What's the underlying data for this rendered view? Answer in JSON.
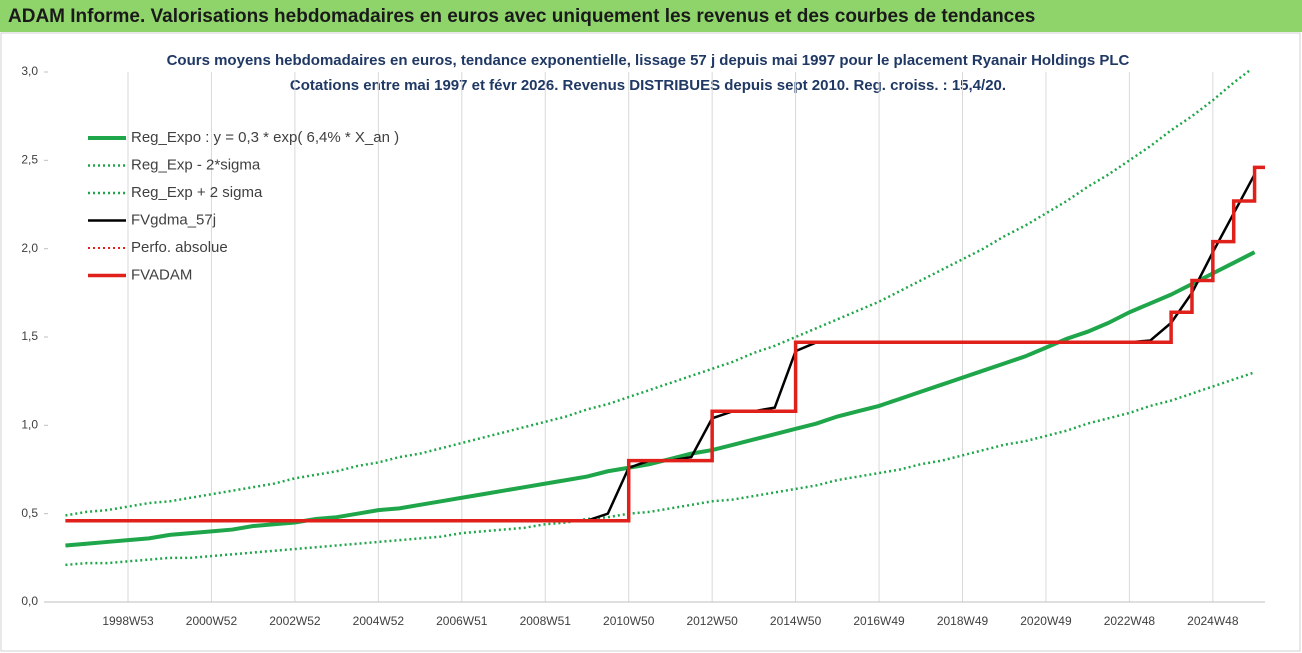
{
  "header": {
    "title": "ADAM Informe. Valorisations hebdomadaires en euros avec uniquement les revenus et des courbes de tendances"
  },
  "chart_data": {
    "type": "line",
    "title": "Cours moyens hebdomadaires en euros, tendance exponentielle, lissage 57 j depuis mai 1997 pour le placement Ryanair Holdings PLC",
    "subtitle": "Cotations entre mai 1997 et févr 2026. Revenus DISTRIBUES depuis sept 2010. Reg. croiss. : 15,4/20.",
    "categories": [
      null,
      null,
      null,
      "1998W53",
      null,
      null,
      null,
      "2000W52",
      null,
      null,
      null,
      "2002W52",
      null,
      null,
      null,
      "2004W52",
      null,
      null,
      null,
      "2006W51",
      null,
      null,
      null,
      "2008W51",
      null,
      null,
      null,
      "2010W50",
      null,
      null,
      null,
      "2012W50",
      null,
      null,
      null,
      "2014W50",
      null,
      null,
      null,
      "2016W49",
      null,
      null,
      null,
      "2018W49",
      null,
      null,
      null,
      "2020W49",
      null,
      null,
      null,
      "2022W48",
      null,
      null,
      null,
      "2024W48",
      null,
      null
    ],
    "ylim": [
      0,
      3
    ],
    "yticks": [
      {
        "value": 0,
        "label": "0,0"
      },
      {
        "value": 0.5,
        "label": "0,5"
      },
      {
        "value": 1,
        "label": "1,0"
      },
      {
        "value": 1.5,
        "label": "1,5"
      },
      {
        "value": 2,
        "label": "2,0"
      },
      {
        "value": 2.5,
        "label": "2,5"
      },
      {
        "value": 3,
        "label": "3,0"
      }
    ],
    "xgrid": true,
    "legend": "upper left",
    "series": [
      {
        "name": "Reg_Expo : y = 0,3 * exp( 6,4% *  X_an )",
        "color": "#1fa64a",
        "linestyle": "solid",
        "linewidth": 4,
        "values": [
          0.32,
          0.33,
          0.34,
          0.35,
          0.36,
          0.38,
          0.39,
          0.4,
          0.41,
          0.43,
          0.44,
          0.45,
          0.47,
          0.48,
          0.5,
          0.52,
          0.53,
          0.55,
          0.57,
          0.59,
          0.61,
          0.63,
          0.65,
          0.67,
          0.69,
          0.71,
          0.74,
          0.76,
          0.78,
          0.81,
          0.84,
          0.86,
          0.89,
          0.92,
          0.95,
          0.98,
          1.01,
          1.05,
          1.08,
          1.11,
          1.15,
          1.19,
          1.23,
          1.27,
          1.31,
          1.35,
          1.39,
          1.44,
          1.49,
          1.53,
          1.58,
          1.64,
          1.69,
          1.74,
          1.8,
          1.86,
          1.92,
          1.98
        ]
      },
      {
        "name": "Reg_Exp - 2*sigma",
        "color": "#1fa64a",
        "linestyle": "dotted",
        "linewidth": 2.5,
        "values": [
          0.21,
          0.22,
          0.22,
          0.23,
          0.24,
          0.25,
          0.25,
          0.26,
          0.27,
          0.28,
          0.29,
          0.3,
          0.31,
          0.32,
          0.33,
          0.34,
          0.35,
          0.36,
          0.37,
          0.39,
          0.4,
          0.41,
          0.42,
          0.44,
          0.45,
          0.47,
          0.48,
          0.5,
          0.51,
          0.53,
          0.55,
          0.57,
          0.58,
          0.6,
          0.62,
          0.64,
          0.66,
          0.69,
          0.71,
          0.73,
          0.75,
          0.78,
          0.8,
          0.83,
          0.86,
          0.89,
          0.91,
          0.94,
          0.97,
          1.01,
          1.04,
          1.07,
          1.11,
          1.14,
          1.18,
          1.22,
          1.26,
          1.3
        ]
      },
      {
        "name": "Reg_Exp + 2 sigma",
        "color": "#1fa64a",
        "linestyle": "dotted",
        "linewidth": 2.5,
        "values": [
          0.49,
          0.51,
          0.52,
          0.54,
          0.56,
          0.57,
          0.59,
          0.61,
          0.63,
          0.65,
          0.67,
          0.7,
          0.72,
          0.74,
          0.77,
          0.79,
          0.82,
          0.84,
          0.87,
          0.9,
          0.93,
          0.96,
          0.99,
          1.02,
          1.05,
          1.09,
          1.12,
          1.16,
          1.2,
          1.24,
          1.28,
          1.32,
          1.36,
          1.41,
          1.45,
          1.5,
          1.55,
          1.6,
          1.65,
          1.7,
          1.76,
          1.82,
          1.88,
          1.94,
          2.0,
          2.07,
          2.13,
          2.2,
          2.27,
          2.35,
          2.42,
          2.5,
          2.58,
          2.67,
          2.75,
          2.84,
          2.94,
          3.03
        ]
      },
      {
        "name": "FVgdma_57j",
        "color": "#000000",
        "linestyle": "solid",
        "linewidth": 2.5,
        "values": [
          0.46,
          0.46,
          0.46,
          0.46,
          0.46,
          0.46,
          0.46,
          0.46,
          0.46,
          0.46,
          0.46,
          0.46,
          0.46,
          0.46,
          0.46,
          0.46,
          0.46,
          0.46,
          0.46,
          0.46,
          0.46,
          0.46,
          0.46,
          0.46,
          0.46,
          0.46,
          0.5,
          0.76,
          0.8,
          0.8,
          0.82,
          1.04,
          1.08,
          1.08,
          1.1,
          1.42,
          1.47,
          1.47,
          1.47,
          1.47,
          1.47,
          1.47,
          1.47,
          1.47,
          1.47,
          1.47,
          1.47,
          1.47,
          1.47,
          1.47,
          1.47,
          1.47,
          1.48,
          1.58,
          1.75,
          1.98,
          2.2,
          2.42
        ]
      },
      {
        "name": "Perfo. absolue",
        "color": "#e0201b",
        "linestyle": "dotted",
        "linewidth": 2,
        "values": [
          null,
          null,
          null,
          null,
          null,
          null,
          null,
          null,
          null,
          null,
          null,
          null,
          null,
          null,
          null,
          null,
          null,
          null,
          null,
          null,
          null,
          null,
          null,
          null,
          null,
          null,
          null,
          null,
          null,
          null,
          null,
          null,
          null,
          null,
          null,
          null,
          null,
          null,
          null,
          null,
          null,
          null,
          null,
          null,
          null,
          null,
          null,
          null,
          null,
          null,
          null,
          null,
          null,
          null,
          null,
          null,
          null,
          null
        ]
      },
      {
        "name": "FVADAM",
        "color": "#e0201b",
        "linestyle": "solid",
        "linewidth": 3.5,
        "drawstyle": "steps-post",
        "values": [
          0.46,
          0.46,
          0.46,
          0.46,
          0.46,
          0.46,
          0.46,
          0.46,
          0.46,
          0.46,
          0.46,
          0.46,
          0.46,
          0.46,
          0.46,
          0.46,
          0.46,
          0.46,
          0.46,
          0.46,
          0.46,
          0.46,
          0.46,
          0.46,
          0.46,
          0.46,
          0.46,
          0.8,
          0.8,
          0.8,
          0.8,
          1.08,
          1.08,
          1.08,
          1.08,
          1.47,
          1.47,
          1.47,
          1.47,
          1.47,
          1.47,
          1.47,
          1.47,
          1.47,
          1.47,
          1.47,
          1.47,
          1.47,
          1.47,
          1.47,
          1.47,
          1.47,
          1.47,
          1.64,
          1.82,
          2.04,
          2.27,
          2.46
        ]
      }
    ]
  }
}
